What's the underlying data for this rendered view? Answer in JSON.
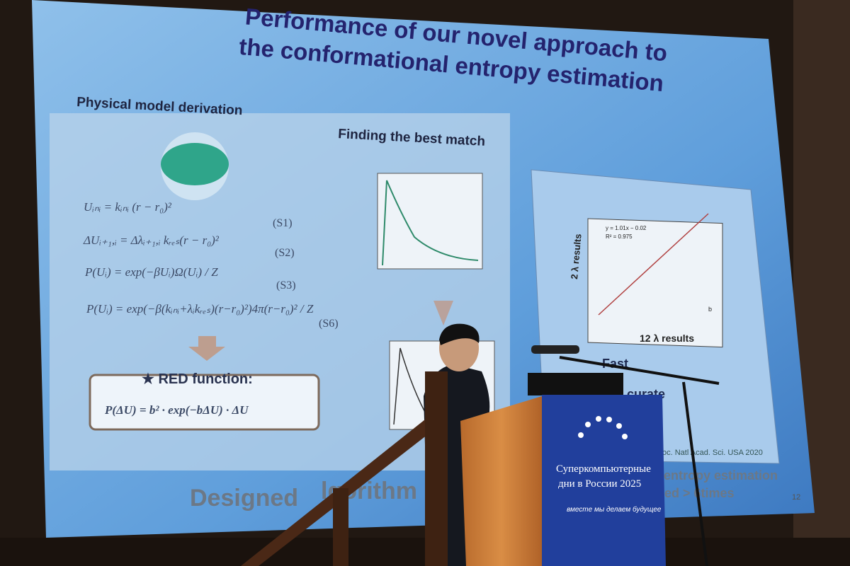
{
  "slide": {
    "title_lines": [
      "Performance of our novel approach to",
      "the conformational entropy estimation"
    ],
    "left_heading": "Physical model derivation",
    "middle_heading": "Finding the best match",
    "equations": [
      {
        "formula": "Uᵢₙᵢ = kᵢₙᵢ (r − r₀)²",
        "tag": "(S1)"
      },
      {
        "formula": "ΔUᵢ₊₁,ᵢ = Δλᵢ₊₁,ᵢ kᵣₑₛ(r − r₀)²",
        "tag": "(S2)"
      },
      {
        "formula": "P(Uᵢ) = exp(−βUᵢ)Ω(Uᵢ) / Z",
        "tag": "(S3)"
      },
      {
        "formula": "P(Uᵢ) = exp(−β(kᵢₙᵢ+λᵢkᵣₑₛ)(r−r₀)²)4π(r−r₀)² / Z",
        "tag": "(S6)"
      }
    ],
    "red_function": {
      "label": "★ RED function:",
      "formula": "P(ΔU) = b² · exp(−bΔU) · ΔU"
    },
    "scatter": {
      "y_label": "2 λ results",
      "x_label": "12 λ results",
      "fit": "y = 1.01x − 0.02",
      "r2": "R² = 0.975",
      "panel": "b"
    },
    "bullets": [
      "Fast",
      "curate",
      "atic"
    ],
    "footer_left": "Designed",
    "footer_left2": "lgorithm",
    "footer_right": [
      "entropy estimation",
      "ted > 6times"
    ],
    "citation": "oc. Natl Acad. Sci. USA 2020",
    "page": "12"
  },
  "podium": {
    "lines": [
      "Суперкомпьютерные",
      "дни в России 2025"
    ],
    "slogan": "вместе мы делаем будущее"
  }
}
